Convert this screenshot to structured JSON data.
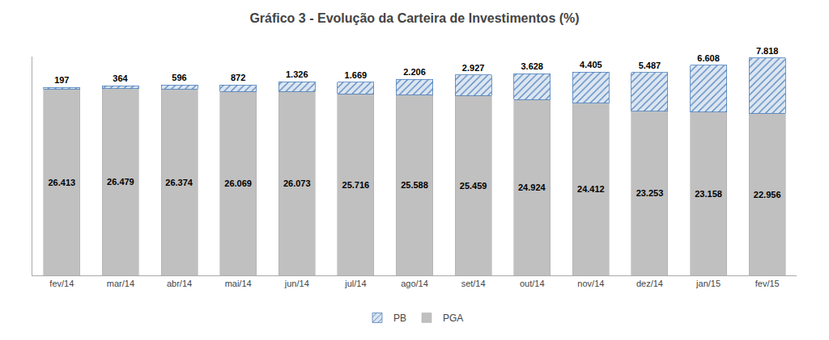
{
  "chart_data": {
    "type": "bar",
    "stacked": true,
    "title": "Gráfico 3 - Evolução da Carteira de Investimentos (%)",
    "categories": [
      "fev/14",
      "mar/14",
      "abr/14",
      "mai/14",
      "jun/14",
      "jul/14",
      "ago/14",
      "set/14",
      "out/14",
      "nov/14",
      "dez/14",
      "jan/15",
      "fev/15"
    ],
    "series": [
      {
        "name": "PGA",
        "color": "#c0c0c0",
        "values": [
          26413,
          26479,
          26374,
          26069,
          26073,
          25716,
          25588,
          25459,
          24924,
          24412,
          23253,
          23158,
          22956
        ],
        "value_labels": [
          "26.413",
          "26.479",
          "26.374",
          "26.069",
          "26.073",
          "25.716",
          "25.588",
          "25.459",
          "24.924",
          "24.412",
          "23.253",
          "23.158",
          "22.956"
        ]
      },
      {
        "name": "PB",
        "color": "#dce6f1",
        "values": [
          197,
          364,
          596,
          872,
          1326,
          1669,
          2206,
          2927,
          3628,
          4405,
          5487,
          6608,
          7818
        ],
        "value_labels": [
          "197",
          "364",
          "596",
          "872",
          "1.326",
          "1.669",
          "2.206",
          "2.927",
          "3.628",
          "4.405",
          "5.487",
          "6.608",
          "7.818"
        ]
      }
    ],
    "ylim": [
      0,
      31000
    ],
    "data_labels": true,
    "tick_labels": "x",
    "legend": "bottom",
    "grid": false
  }
}
